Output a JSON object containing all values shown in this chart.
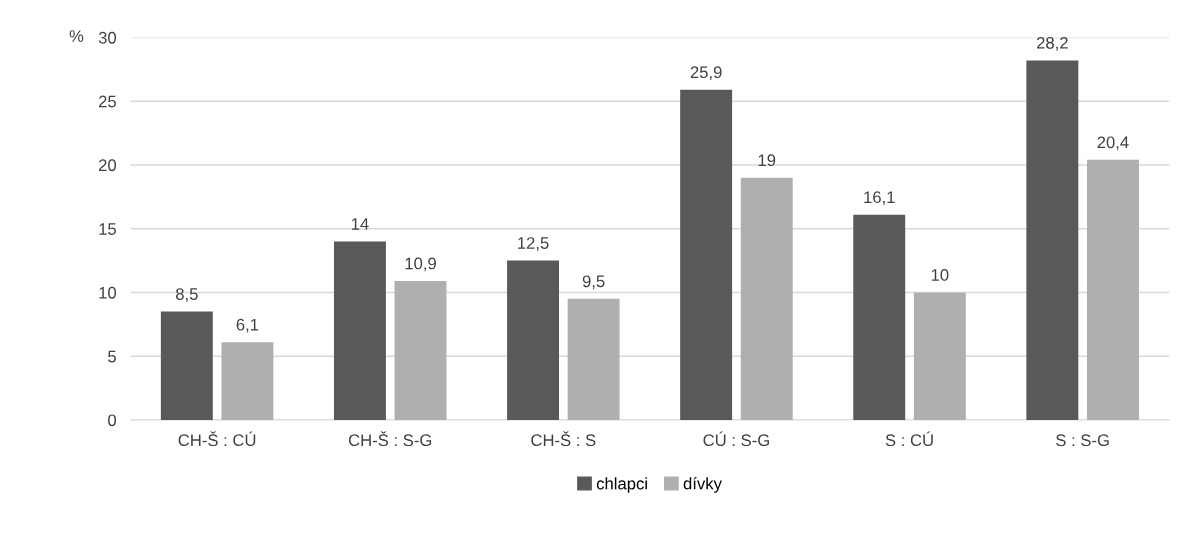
{
  "chart_data": {
    "type": "bar",
    "ylabel": "%",
    "categories": [
      "CH-Š : CÚ",
      "CH-Š : S-G",
      "CH-Š : S",
      "CÚ : S-G",
      "S : CÚ",
      "S : S-G"
    ],
    "series": [
      {
        "name": "chlapci",
        "color": "#595959",
        "values": [
          8.5,
          14,
          12.5,
          25.9,
          16.1,
          28.2
        ],
        "value_labels": [
          "8,5",
          "14",
          "12,5",
          "25,9",
          "16,1",
          "28,2"
        ]
      },
      {
        "name": "dívky",
        "color": "#afafaf",
        "values": [
          6.1,
          10.9,
          9.5,
          19,
          10,
          20.4
        ],
        "value_labels": [
          "6,1",
          "10,9",
          "9,5",
          "19",
          "10",
          "20,4"
        ]
      }
    ],
    "ylim": [
      0,
      30
    ],
    "yticks": [
      0,
      5,
      10,
      15,
      20,
      25,
      30
    ],
    "grid": "y",
    "legend": "bottom"
  }
}
